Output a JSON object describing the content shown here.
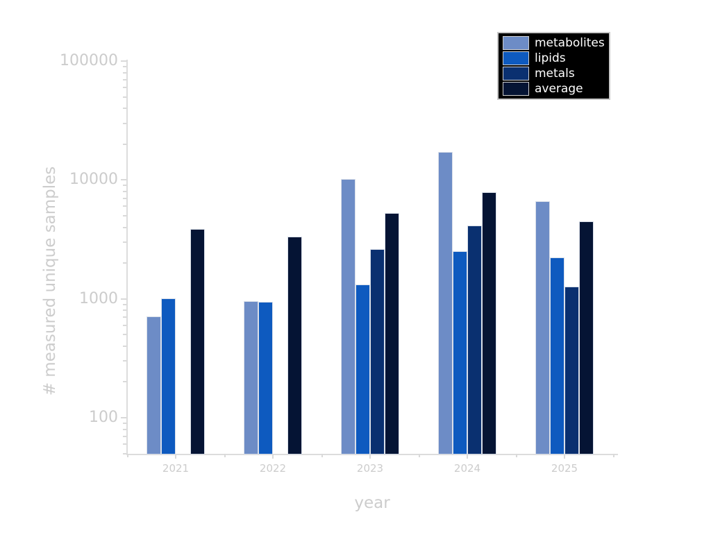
{
  "figure": {
    "background": "#ffffff",
    "axis_text_color": "#cccccc",
    "spine_color": "#dcdcdc"
  },
  "legend": {
    "background": "#000000",
    "border_color": "#c8c8c8",
    "text_color": "#ffffff"
  },
  "chart_data": {
    "type": "bar",
    "title": "",
    "xlabel": "year",
    "ylabel": "# measured unique samples",
    "x_categories": [
      "2021",
      "2022",
      "2023",
      "2024",
      "2025"
    ],
    "series": [
      {
        "name": "metabolites",
        "color": "#6d8cc6",
        "values": [
          700,
          950,
          10000,
          17000,
          6500
        ]
      },
      {
        "name": "lipids",
        "color": "#0e5abf",
        "values": [
          1000,
          930,
          1300,
          2500,
          2200
        ]
      },
      {
        "name": "metals",
        "color": "#0a3070",
        "values": [
          null,
          null,
          2600,
          4100,
          1250
        ]
      },
      {
        "name": "average",
        "color": "#051434",
        "values": [
          3800,
          3300,
          5200,
          7800,
          4400
        ]
      }
    ],
    "yscale": "log",
    "ylim": [
      50,
      100000
    ],
    "yticks": [
      100,
      1000,
      10000,
      100000
    ],
    "grid": false,
    "legend_position": "upper-right"
  }
}
